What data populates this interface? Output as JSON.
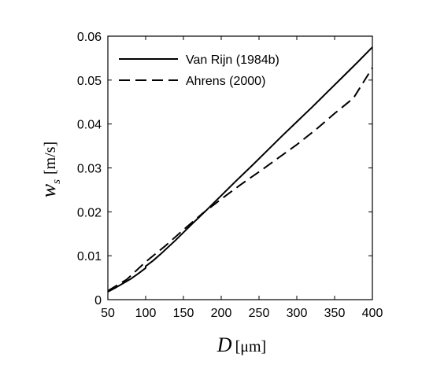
{
  "chart_data": {
    "type": "line",
    "title": "",
    "xlabel": {
      "symbol": "D",
      "unit": "[μm]"
    },
    "ylabel": {
      "symbol": "w",
      "subscript": "s",
      "unit": "[m/s]"
    },
    "xlim": [
      50,
      400
    ],
    "ylim": [
      0,
      0.06
    ],
    "xticks": [
      "50",
      "100",
      "150",
      "200",
      "250",
      "300",
      "350",
      "400"
    ],
    "yticks": [
      "0",
      "0.01",
      "0.02",
      "0.03",
      "0.04",
      "0.05",
      "0.06"
    ],
    "grid": false,
    "legend_position": "top-left",
    "series": [
      {
        "name": "Van Rijn (1984b)",
        "style": "solid",
        "x": [
          50,
          60,
          70,
          80,
          90,
          100,
          100,
          110,
          120,
          140,
          160,
          180,
          200,
          220,
          240,
          260,
          280,
          300,
          320,
          340,
          360,
          380,
          400
        ],
        "y": [
          0.0018,
          0.0027,
          0.0037,
          0.0047,
          0.0059,
          0.0072,
          0.0076,
          0.0089,
          0.0104,
          0.0136,
          0.017,
          0.0203,
          0.0237,
          0.0271,
          0.0304,
          0.0338,
          0.0372,
          0.0405,
          0.0438,
          0.0472,
          0.0506,
          0.054,
          0.0575
        ]
      },
      {
        "name": "Ahrens (2000)",
        "style": "dashed",
        "x": [
          50,
          75,
          100,
          125,
          150,
          175,
          200,
          225,
          250,
          275,
          300,
          325,
          350,
          375,
          400
        ],
        "y": [
          0.002,
          0.0046,
          0.0086,
          0.0121,
          0.0159,
          0.0196,
          0.0229,
          0.0261,
          0.0291,
          0.0322,
          0.0353,
          0.0387,
          0.0424,
          0.0459,
          0.0528
        ]
      }
    ]
  }
}
